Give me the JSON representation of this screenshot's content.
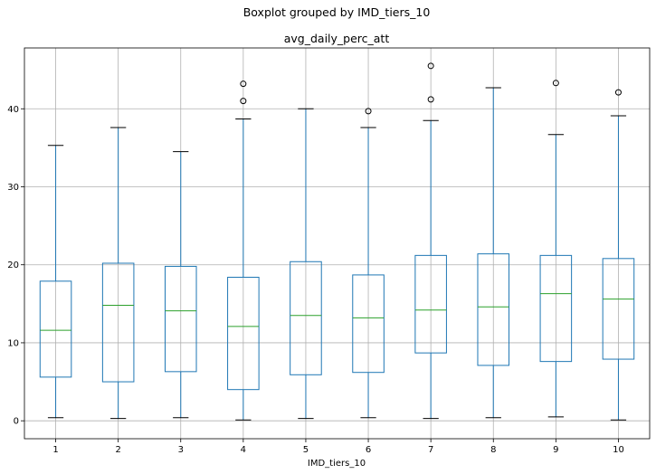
{
  "chart_data": {
    "type": "boxplot",
    "title": "Boxplot grouped by IMD_tiers_10",
    "subtitle": "avg_daily_perc_att",
    "xlabel": "IMD_tiers_10",
    "ylabel": "",
    "categories": [
      "1",
      "2",
      "3",
      "4",
      "5",
      "6",
      "7",
      "8",
      "9",
      "10"
    ],
    "ylim": [
      -2.3,
      47.8
    ],
    "yticks": [
      0,
      10,
      20,
      30,
      40
    ],
    "grid": true,
    "legend": "none",
    "colors": {
      "box": "#1f77b4",
      "median": "#2ca02c",
      "whisker": "#1f77b4",
      "cap": "#000000",
      "flier": "#000000",
      "grid": "#b0b0b0"
    },
    "boxes": [
      {
        "category": "1",
        "whislo": 0.4,
        "q1": 5.6,
        "med": 11.6,
        "q3": 17.9,
        "whishi": 35.3,
        "fliers": []
      },
      {
        "category": "2",
        "whislo": 0.3,
        "q1": 5.0,
        "med": 14.8,
        "q3": 20.2,
        "whishi": 37.6,
        "fliers": []
      },
      {
        "category": "3",
        "whislo": 0.4,
        "q1": 6.3,
        "med": 14.1,
        "q3": 19.8,
        "whishi": 34.5,
        "fliers": []
      },
      {
        "category": "4",
        "whislo": 0.1,
        "q1": 4.0,
        "med": 12.1,
        "q3": 18.4,
        "whishi": 38.7,
        "fliers": [
          41.0,
          43.2
        ]
      },
      {
        "category": "5",
        "whislo": 0.3,
        "q1": 5.9,
        "med": 13.5,
        "q3": 20.4,
        "whishi": 40.0,
        "fliers": []
      },
      {
        "category": "6",
        "whislo": 0.4,
        "q1": 6.2,
        "med": 13.2,
        "q3": 18.7,
        "whishi": 37.6,
        "fliers": [
          39.7
        ]
      },
      {
        "category": "7",
        "whislo": 0.3,
        "q1": 8.7,
        "med": 14.2,
        "q3": 21.2,
        "whishi": 38.5,
        "fliers": [
          41.2,
          45.5
        ]
      },
      {
        "category": "8",
        "whislo": 0.4,
        "q1": 7.1,
        "med": 14.6,
        "q3": 21.4,
        "whishi": 42.7,
        "fliers": []
      },
      {
        "category": "9",
        "whislo": 0.5,
        "q1": 7.6,
        "med": 16.3,
        "q3": 21.2,
        "whishi": 36.7,
        "fliers": [
          43.3
        ]
      },
      {
        "category": "10",
        "whislo": 0.1,
        "q1": 7.9,
        "med": 15.6,
        "q3": 20.8,
        "whishi": 39.1,
        "fliers": [
          42.1
        ]
      }
    ]
  }
}
